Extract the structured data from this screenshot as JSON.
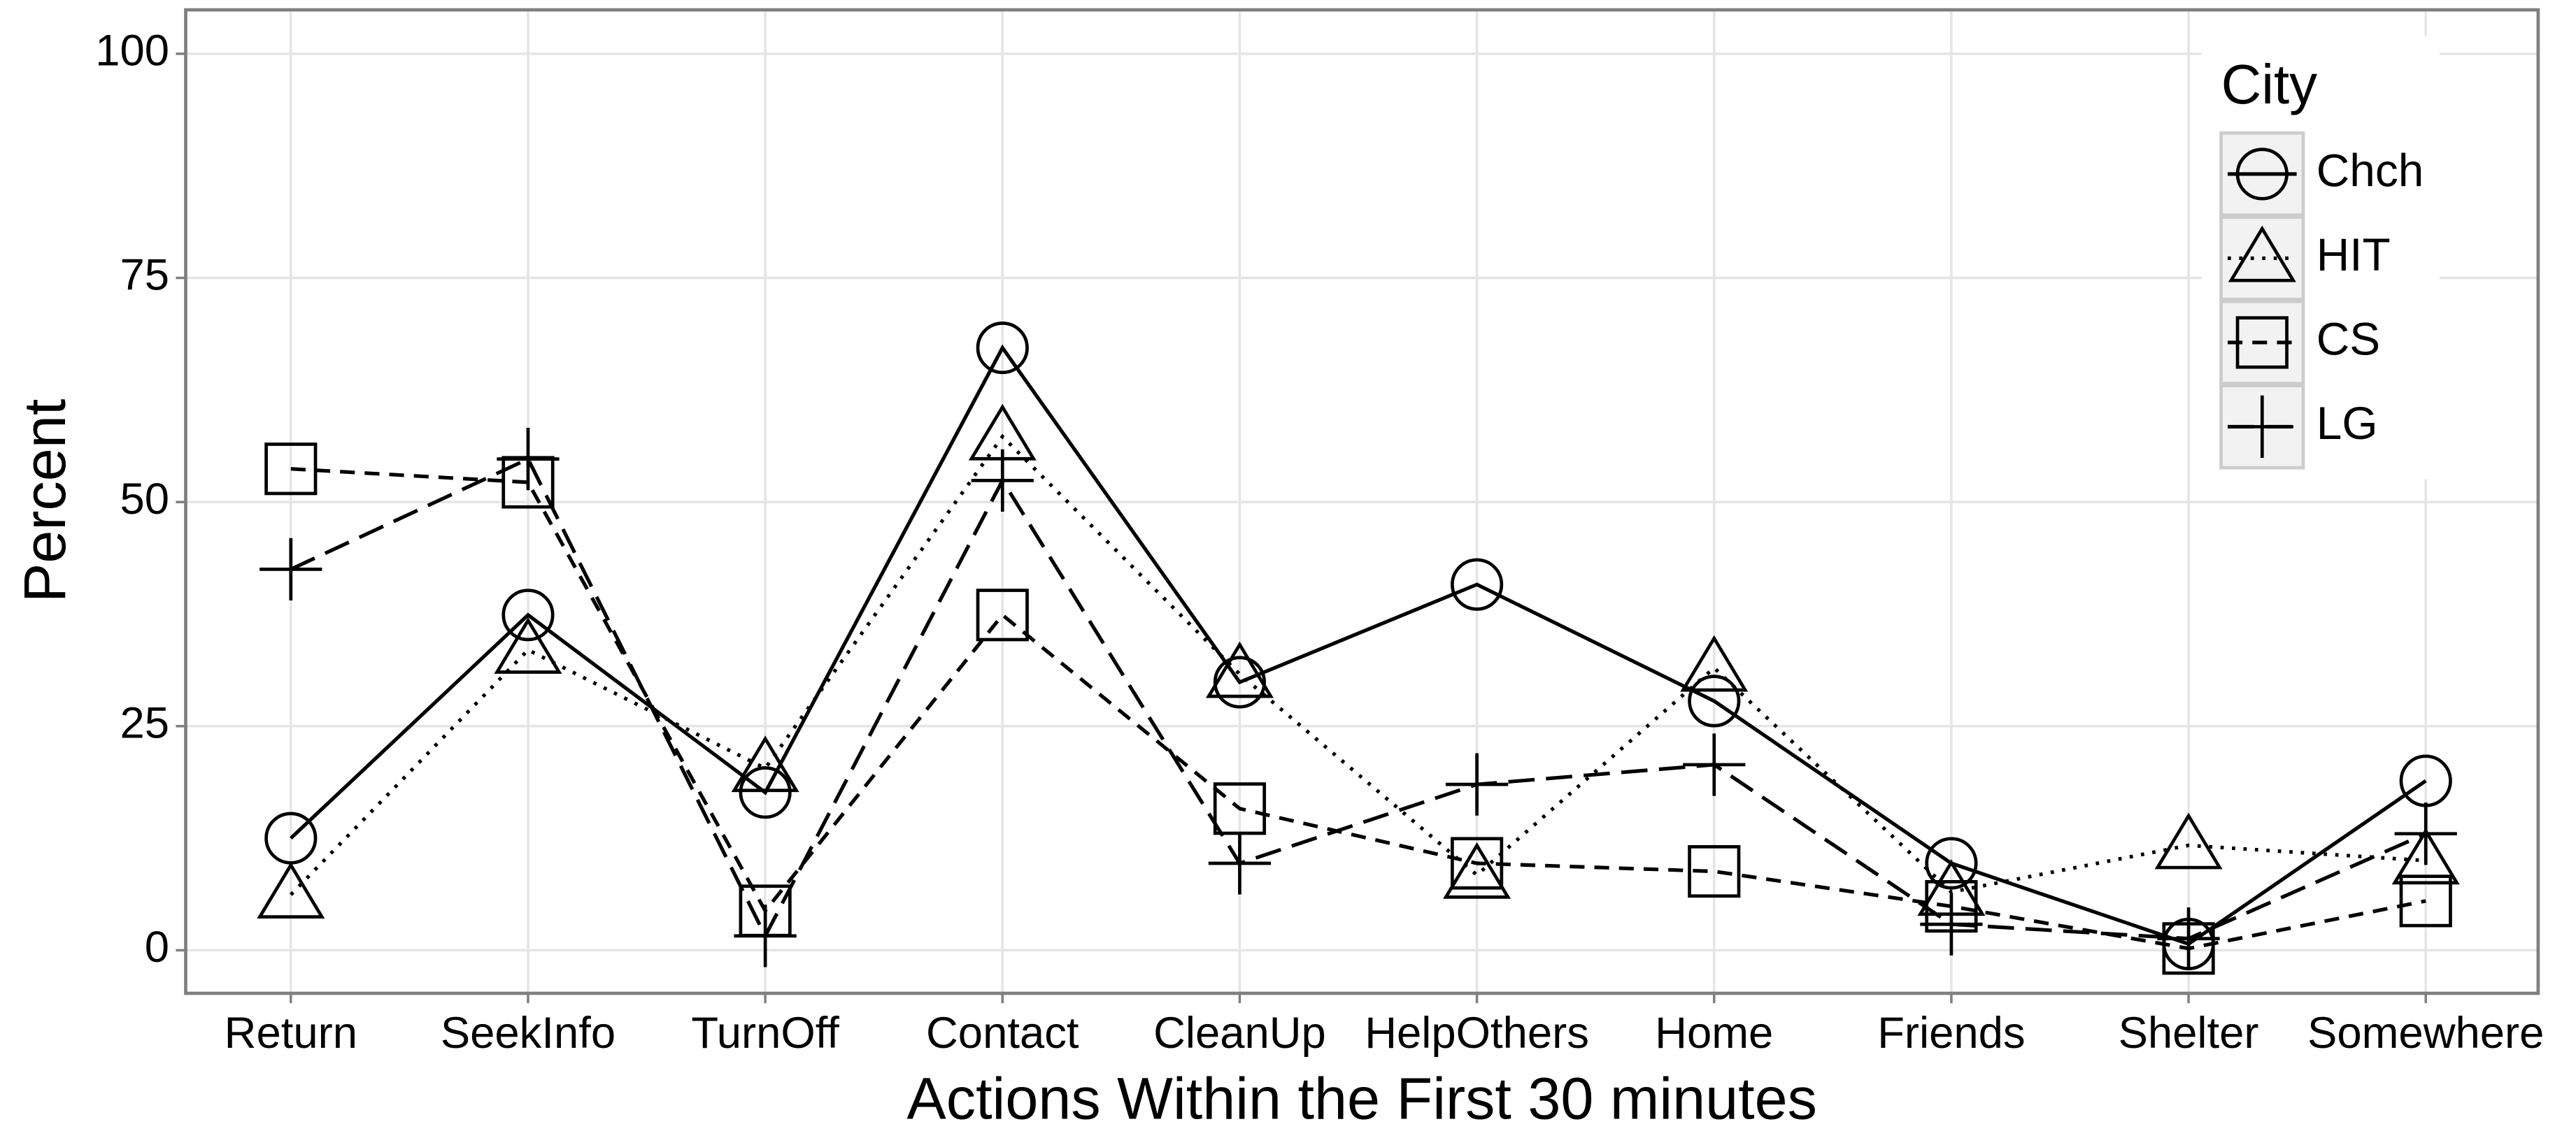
{
  "chart_data": {
    "type": "line",
    "x_label": "Actions Within the First 30 minutes",
    "y_label": "Percent",
    "categories": [
      "Return",
      "SeekInfo",
      "TurnOff",
      "Contact",
      "CleanUp",
      "HelpOthers",
      "Home",
      "Friends",
      "Shelter",
      "Somewhere"
    ],
    "series": [
      {
        "name": "Chch",
        "color": "#000000",
        "shape": "circle",
        "linetype": "solid",
        "values": [
          12.5,
          37.4,
          17.6,
          67.2,
          29.9,
          40.8,
          27.8,
          9.7,
          0.7,
          18.9
        ]
      },
      {
        "name": "HIT",
        "color": "#000000",
        "shape": "triangle",
        "linetype": "dotted",
        "values": [
          6.2,
          33.5,
          20.3,
          57.3,
          30.8,
          8.4,
          31.5,
          6.5,
          11.7,
          10
        ]
      },
      {
        "name": "CS",
        "color": "#000000",
        "shape": "square",
        "linetype": "dashed",
        "values": [
          53.7,
          52.2,
          4.4,
          37.4,
          15.8,
          9.7,
          8.8,
          4.9,
          0.2,
          5.5
        ]
      },
      {
        "name": "LG",
        "color": "#000000",
        "shape": "plus",
        "linetype": "longdash",
        "values": [
          42.5,
          54.8,
          1.6,
          52.4,
          9.7,
          18.5,
          20.7,
          2.9,
          1.3,
          13
        ]
      }
    ],
    "legend_title": "City",
    "legend_position": "top-right",
    "ylim": [
      -4.8,
      104.9
    ],
    "yticks": [
      0,
      25,
      50,
      75,
      100
    ],
    "grid": true
  }
}
